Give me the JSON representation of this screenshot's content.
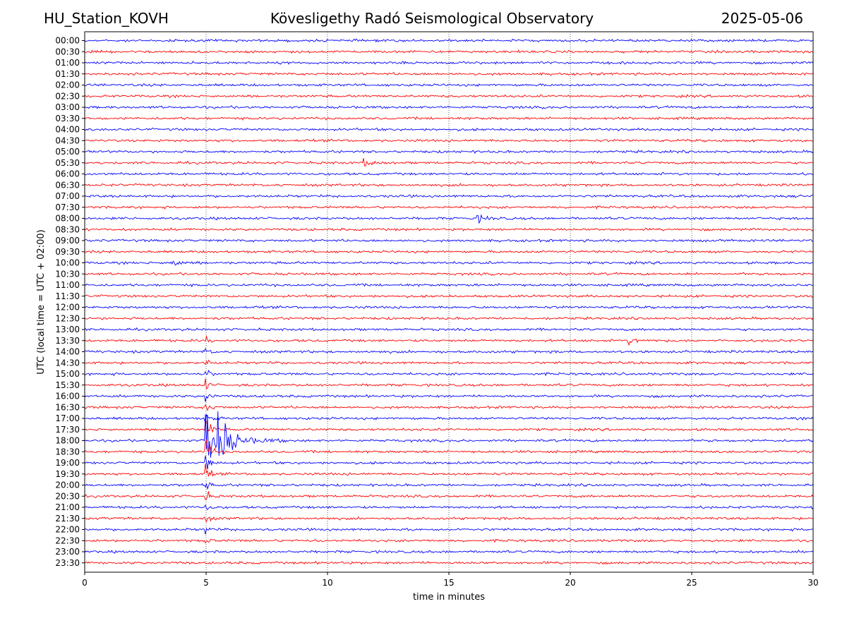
{
  "header": {
    "station": "HU_Station_KOVH",
    "title": "Kövesligethy Radó Seismological Observatory",
    "date": "2025-05-06"
  },
  "chart_data": {
    "type": "line",
    "xlabel": "time in minutes",
    "ylabel": "UTC (local time = UTC + 02:00)",
    "xlim": [
      0,
      30
    ],
    "x_ticks": [
      "0",
      "5",
      "10",
      "15",
      "20",
      "25",
      "30"
    ],
    "x_tick_values": [
      0,
      5,
      10,
      15,
      20,
      25,
      30
    ],
    "grid": "vertical dotted lines at x ticks",
    "row_labels": [
      "00:00",
      "00:30",
      "01:00",
      "01:30",
      "02:00",
      "02:30",
      "03:00",
      "03:30",
      "04:00",
      "04:30",
      "05:00",
      "05:30",
      "06:00",
      "06:30",
      "07:00",
      "07:30",
      "08:00",
      "08:30",
      "09:00",
      "09:30",
      "10:00",
      "10:30",
      "11:00",
      "11:30",
      "12:00",
      "12:30",
      "13:00",
      "13:30",
      "14:00",
      "14:30",
      "15:00",
      "15:30",
      "16:00",
      "16:30",
      "17:00",
      "17:30",
      "18:00",
      "18:30",
      "19:00",
      "19:30",
      "20:00",
      "20:30",
      "21:00",
      "21:30",
      "22:00",
      "22:30",
      "23:00",
      "23:30"
    ],
    "trace_colors": [
      "#0000ff",
      "#ff0000"
    ],
    "events": [
      {
        "row": "05:30",
        "minute": 11.5,
        "amplitude": "small"
      },
      {
        "row": "08:00",
        "minute": 16.2,
        "amplitude": "small"
      },
      {
        "row": "10:00",
        "minute": 3.6,
        "amplitude": "small"
      },
      {
        "row": "13:30",
        "minute": 22.4,
        "amplitude": "small"
      },
      {
        "row": "18:00",
        "minute": 4.98,
        "amplitude": "large"
      }
    ]
  }
}
